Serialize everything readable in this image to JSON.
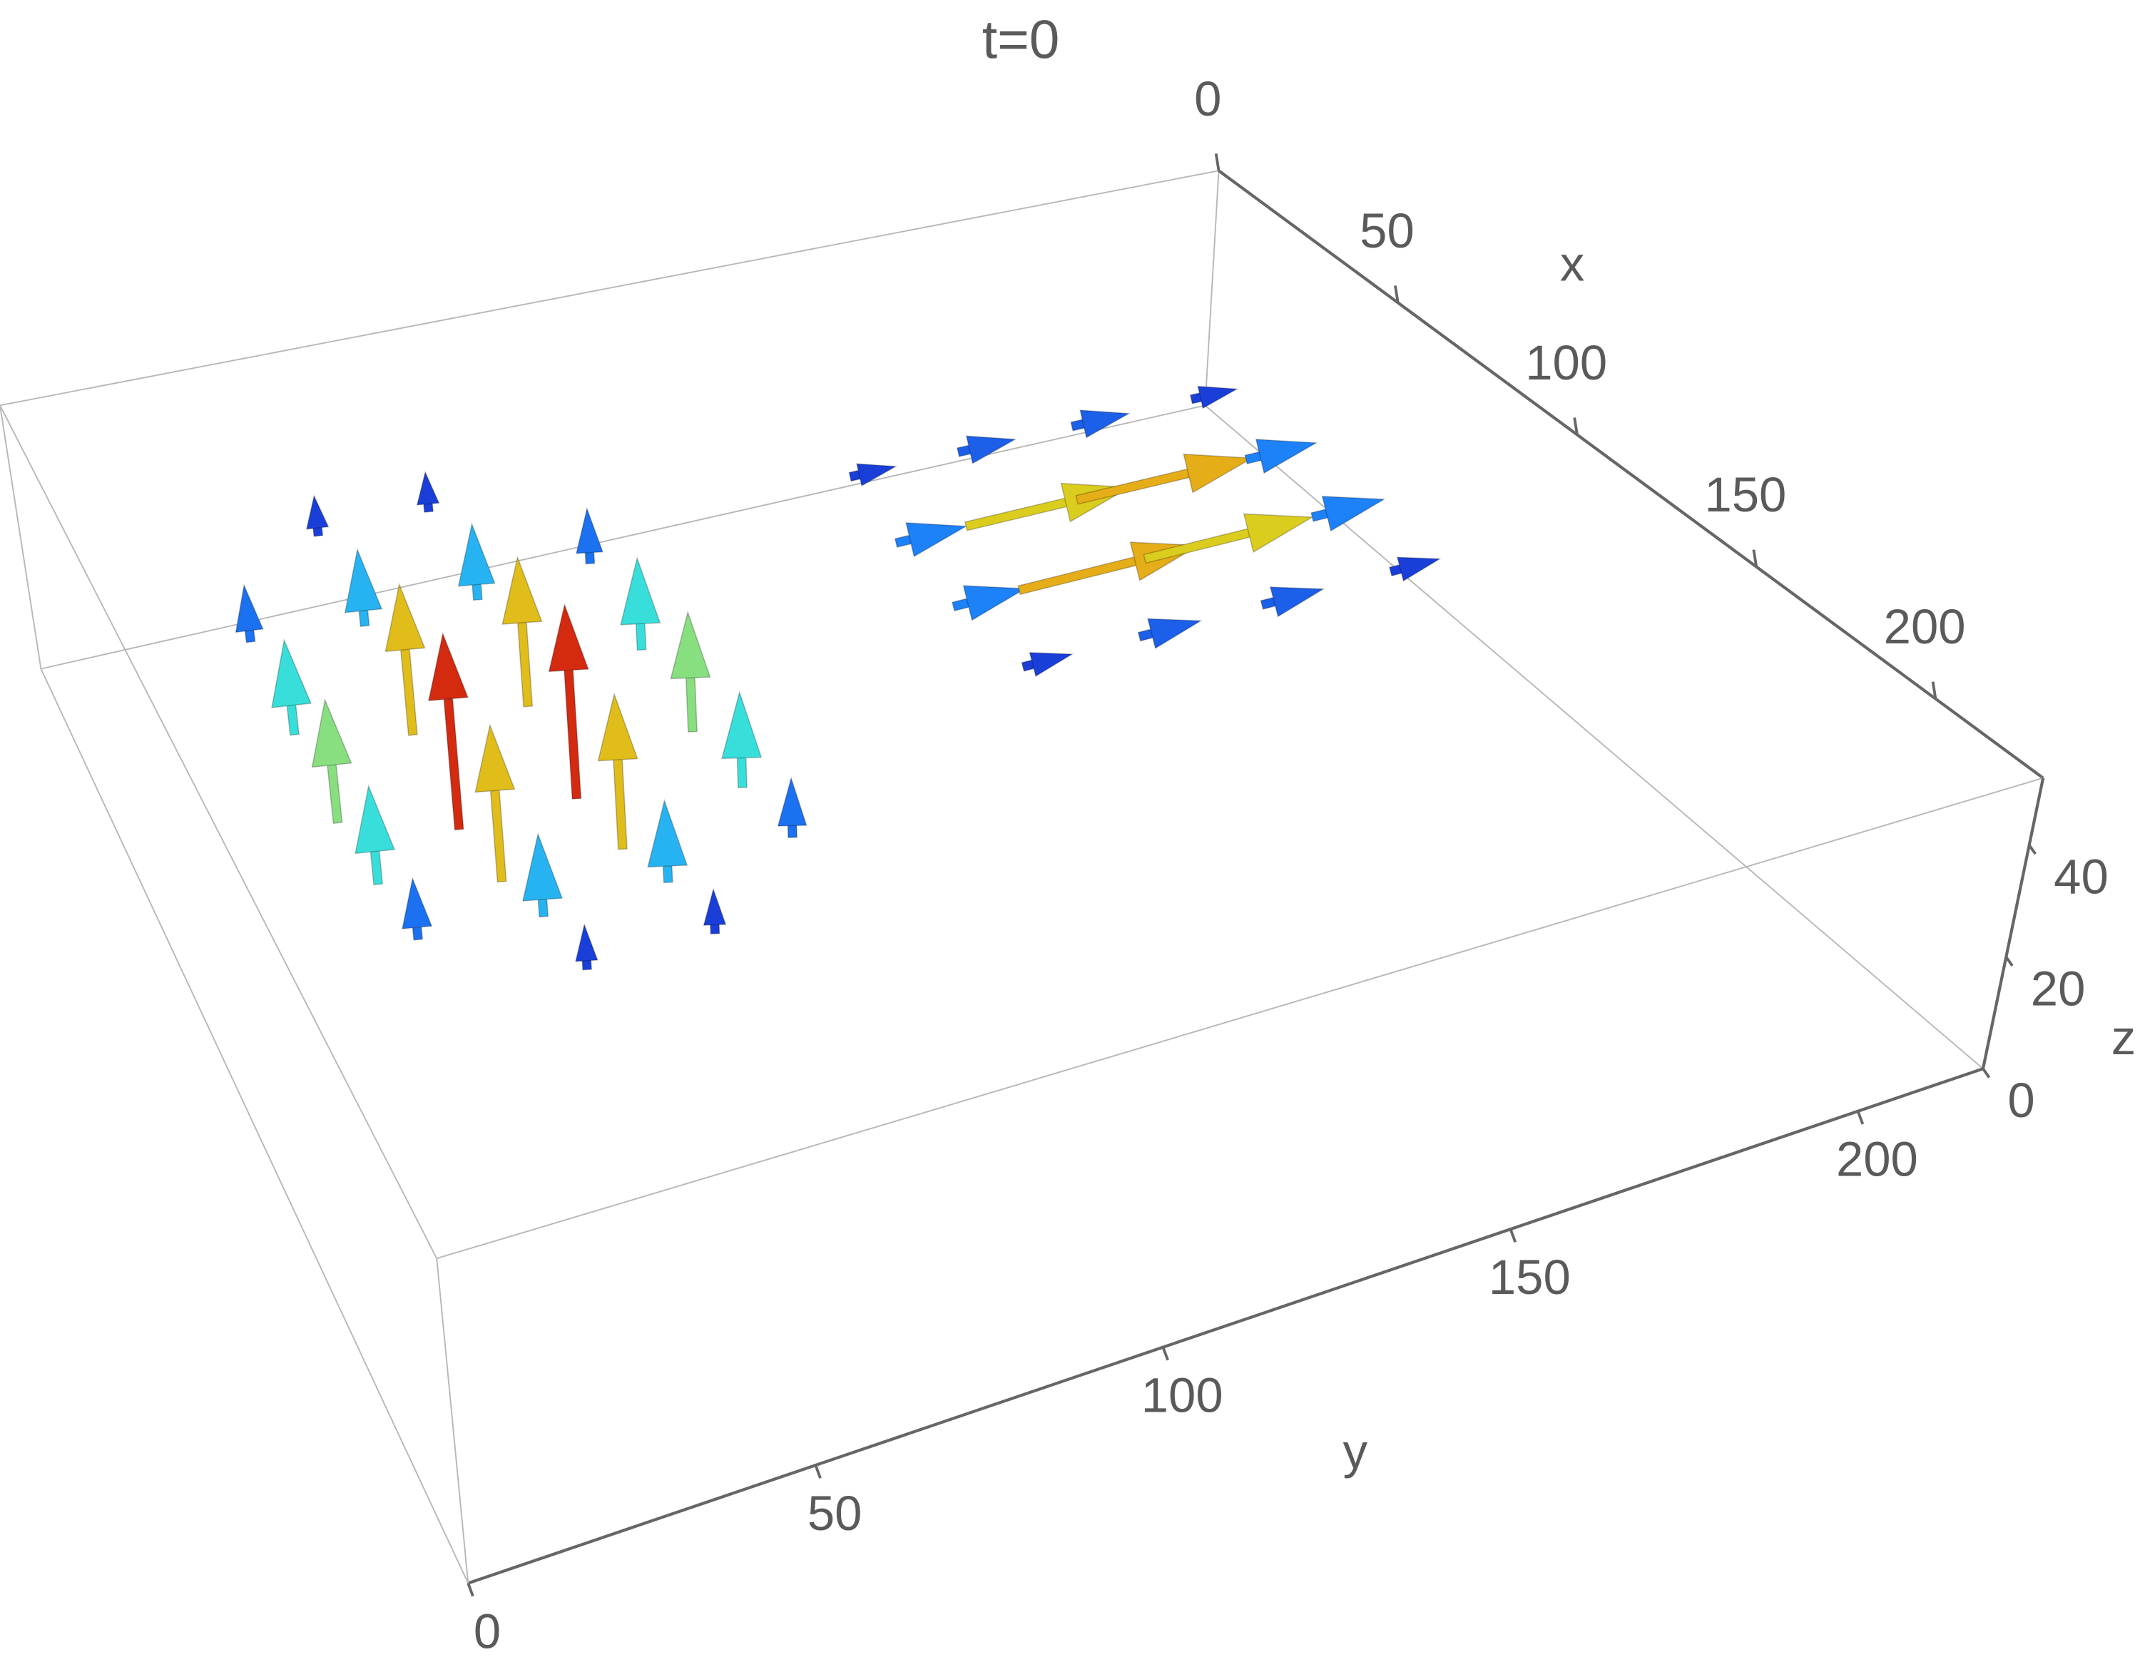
{
  "chart_data": {
    "type": "vector3d",
    "title": "t=0",
    "x_label": "x",
    "y_label": "y",
    "z_label": "z",
    "xlim": [
      0,
      230
    ],
    "ylim": [
      0,
      218
    ],
    "zlim": [
      0,
      52
    ],
    "xticks": [
      0,
      50,
      100,
      150,
      200
    ],
    "yticks": [
      0,
      50,
      100,
      150,
      200
    ],
    "zticks": [
      0,
      20,
      40
    ],
    "color_scale": [
      "#1a3fd9",
      "#1e8fff",
      "#33dfe0",
      "#7fe08a",
      "#d8d820",
      "#f08a10",
      "#d42a10"
    ],
    "vectors": {
      "x": [
        10,
        10,
        30,
        30,
        30,
        30,
        50,
        50,
        50,
        50,
        70,
        70,
        70,
        70,
        90,
        90,
        90,
        90,
        110,
        110,
        110,
        110,
        130,
        130,
        30,
        30,
        30,
        30,
        50,
        50,
        50,
        50,
        70,
        70,
        70,
        70,
        90,
        90,
        90,
        90
      ],
      "y": [
        50,
        70,
        30,
        50,
        70,
        90,
        30,
        50,
        70,
        90,
        30,
        50,
        70,
        90,
        30,
        50,
        70,
        90,
        30,
        50,
        70,
        90,
        50,
        70,
        140,
        160,
        180,
        200,
        140,
        160,
        180,
        200,
        140,
        160,
        180,
        200,
        140,
        160,
        180,
        200
      ],
      "z": [
        26,
        26,
        26,
        26,
        26,
        26,
        26,
        26,
        26,
        26,
        26,
        26,
        26,
        26,
        26,
        26,
        26,
        26,
        26,
        26,
        26,
        26,
        26,
        26,
        26,
        26,
        26,
        26,
        26,
        26,
        26,
        26,
        26,
        26,
        26,
        26,
        26,
        26,
        26,
        26
      ],
      "u": [
        0,
        0,
        0,
        0,
        0,
        0,
        0,
        0,
        0,
        0,
        0,
        0,
        0,
        0,
        0,
        0,
        0,
        0,
        0,
        0,
        0,
        0,
        0,
        0,
        0,
        0,
        0,
        0,
        0,
        0,
        0,
        0,
        0,
        0,
        0,
        0,
        0,
        0,
        0,
        0
      ],
      "v": [
        0,
        0,
        0,
        0,
        0,
        0,
        0,
        0,
        0,
        0,
        0,
        0,
        0,
        0,
        0,
        0,
        0,
        0,
        0,
        0,
        0,
        0,
        0,
        0,
        8,
        10,
        10,
        8,
        12,
        28,
        30,
        12,
        12,
        30,
        28,
        12,
        8,
        10,
        10,
        8
      ],
      "w": [
        8,
        8,
        11,
        15,
        15,
        11,
        18,
        29,
        29,
        18,
        23,
        37,
        37,
        23,
        18,
        29,
        29,
        18,
        11,
        15,
        15,
        11,
        8,
        8,
        0,
        0,
        0,
        0,
        0,
        0,
        0,
        0,
        0,
        0,
        0,
        0,
        0,
        0,
        0,
        0
      ]
    }
  }
}
